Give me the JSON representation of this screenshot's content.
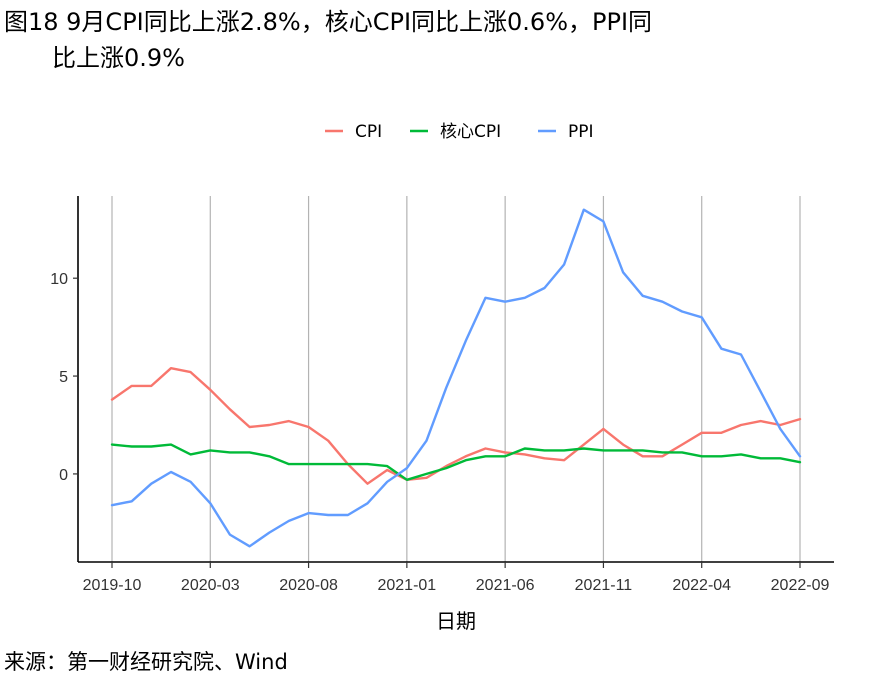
{
  "title_line1": "图18 9月CPI同比上涨2.8%，核心CPI同比上涨0.6%，PPI同",
  "title_line2": "比上涨0.9%",
  "source": "来源：第一财经研究院、Wind",
  "chart_data": {
    "type": "line",
    "xlabel": "日期",
    "ylabel": "",
    "ylim": [
      -4.5,
      14.2
    ],
    "yticks": [
      0,
      5,
      10
    ],
    "x_tick_labels": [
      "2019-10",
      "2020-03",
      "2020-08",
      "2021-01",
      "2021-06",
      "2021-11",
      "2022-04",
      "2022-09"
    ],
    "x_tick_index": [
      0,
      5,
      10,
      15,
      20,
      25,
      30,
      35
    ],
    "legend_position": "top",
    "grid": "vertical",
    "x": [
      "2019-10",
      "2019-11",
      "2019-12",
      "2020-01",
      "2020-02",
      "2020-03",
      "2020-04",
      "2020-05",
      "2020-06",
      "2020-07",
      "2020-08",
      "2020-09",
      "2020-10",
      "2020-11",
      "2020-12",
      "2021-01",
      "2021-02",
      "2021-03",
      "2021-04",
      "2021-05",
      "2021-06",
      "2021-07",
      "2021-08",
      "2021-09",
      "2021-10",
      "2021-11",
      "2021-12",
      "2022-01",
      "2022-02",
      "2022-03",
      "2022-04",
      "2022-05",
      "2022-06",
      "2022-07",
      "2022-08",
      "2022-09"
    ],
    "series": [
      {
        "name": "CPI",
        "color": "#F8766D",
        "values": [
          3.8,
          4.5,
          4.5,
          5.4,
          5.2,
          4.3,
          3.3,
          2.4,
          2.5,
          2.7,
          2.4,
          1.7,
          0.5,
          -0.5,
          0.2,
          -0.3,
          -0.2,
          0.4,
          0.9,
          1.3,
          1.1,
          1.0,
          0.8,
          0.7,
          1.5,
          2.3,
          1.5,
          0.9,
          0.9,
          1.5,
          2.1,
          2.1,
          2.5,
          2.7,
          2.5,
          2.8
        ]
      },
      {
        "name": "核心CPI",
        "color": "#00BA38",
        "values": [
          1.5,
          1.4,
          1.4,
          1.5,
          1.0,
          1.2,
          1.1,
          1.1,
          0.9,
          0.5,
          0.5,
          0.5,
          0.5,
          0.5,
          0.4,
          -0.3,
          0.0,
          0.3,
          0.7,
          0.9,
          0.9,
          1.3,
          1.2,
          1.2,
          1.3,
          1.2,
          1.2,
          1.2,
          1.1,
          1.1,
          0.9,
          0.9,
          1.0,
          0.8,
          0.8,
          0.6
        ]
      },
      {
        "name": "PPI",
        "color": "#619CFF",
        "values": [
          -1.6,
          -1.4,
          -0.5,
          0.1,
          -0.4,
          -1.5,
          -3.1,
          -3.7,
          -3.0,
          -2.4,
          -2.0,
          -2.1,
          -2.1,
          -1.5,
          -0.4,
          0.3,
          1.7,
          4.4,
          6.8,
          9.0,
          8.8,
          9.0,
          9.5,
          10.7,
          13.5,
          12.9,
          10.3,
          9.1,
          8.8,
          8.3,
          8.0,
          6.4,
          6.1,
          4.2,
          2.3,
          0.9
        ]
      }
    ]
  }
}
